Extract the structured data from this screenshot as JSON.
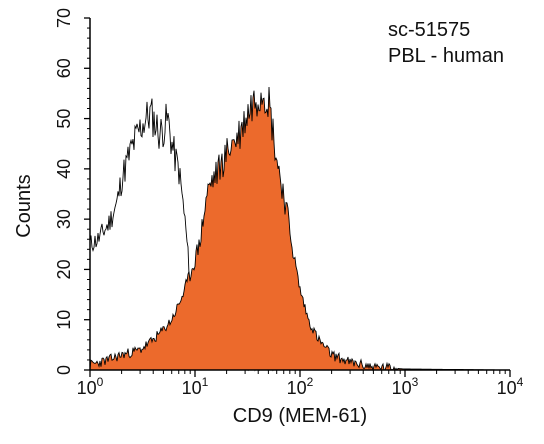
{
  "chart_data": {
    "type": "area",
    "xlabel": "CD9 (MEM-61)",
    "ylabel": "Counts",
    "xscale": "log",
    "xlim": [
      1,
      10000
    ],
    "ylim": [
      0,
      70
    ],
    "x_ticks": [
      {
        "base": "10",
        "exp": "0",
        "value": 1
      },
      {
        "base": "10",
        "exp": "1",
        "value": 10
      },
      {
        "base": "10",
        "exp": "2",
        "value": 100
      },
      {
        "base": "10",
        "exp": "3",
        "value": 1000
      },
      {
        "base": "10",
        "exp": "4",
        "value": 10000
      }
    ],
    "y_ticks": [
      "0",
      "10",
      "20",
      "30",
      "40",
      "50",
      "60",
      "70"
    ],
    "grid": false,
    "legend": "none",
    "annotations": [
      "sc-51575",
      "PBL - human"
    ],
    "series": [
      {
        "style": "outline",
        "color": "#000000",
        "x": [
          1.0,
          1.2,
          1.5,
          1.8,
          2.0,
          2.3,
          2.6,
          3.0,
          3.4,
          3.8,
          4.2,
          4.6,
          5.0,
          5.5,
          6.0,
          6.5,
          7.0,
          7.5,
          8.0,
          8.5,
          9.0,
          9.5,
          10.0,
          11.0,
          12.0,
          13.0,
          14.0,
          16.0,
          18.0,
          20.0,
          25.0,
          30.0,
          40.0,
          60.0,
          100.0
        ],
        "values": [
          25,
          26,
          29,
          33,
          38,
          42,
          45,
          48,
          50,
          51,
          49,
          47,
          48,
          50,
          45,
          42,
          40,
          35,
          30,
          24,
          17,
          11,
          7,
          5,
          4,
          3,
          2.5,
          2,
          1.5,
          1.2,
          1,
          0.7,
          0.5,
          0.3,
          0
        ]
      },
      {
        "style": "filled",
        "color": "#ec6a2c",
        "x": [
          1.0,
          1.5,
          2.0,
          3.0,
          4.0,
          5.0,
          6.0,
          7.0,
          8.0,
          9.0,
          10.0,
          11.0,
          12.0,
          13.0,
          14.0,
          16.0,
          18.0,
          20.0,
          22.0,
          25.0,
          28.0,
          30.0,
          35.0,
          40.0,
          45.0,
          50.0,
          55.0,
          60.0,
          70.0,
          80.0,
          90.0,
          100.0,
          120.0,
          150.0,
          200.0,
          300.0,
          500.0,
          1000.0,
          10000.0
        ],
        "values": [
          1,
          2,
          3,
          4,
          6,
          8,
          10,
          13,
          16,
          19,
          22,
          25,
          30,
          35,
          37,
          39,
          41,
          43,
          45,
          46,
          48,
          50,
          53,
          55,
          56,
          54,
          48,
          42,
          35,
          28,
          21,
          16,
          10,
          6,
          3,
          1.5,
          0.6,
          0.2,
          0
        ]
      },
      {
        "style": "outline",
        "color": "#000000",
        "x": [
          1.0,
          1.5,
          2.0,
          3.0,
          4.0,
          5.0,
          6.0,
          7.0,
          8.0,
          9.0,
          10.0,
          11.0,
          12.0,
          13.0,
          14.0,
          16.0,
          18.0,
          20.0,
          22.0,
          25.0,
          28.0,
          30.0,
          35.0,
          40.0,
          45.0,
          50.0,
          55.0,
          60.0,
          70.0,
          80.0,
          90.0,
          100.0,
          120.0,
          150.0,
          200.0,
          300.0,
          500.0,
          1000.0,
          10000.0
        ],
        "values": [
          1,
          2,
          3,
          4,
          6,
          8,
          10,
          13,
          16,
          19,
          22,
          25,
          30,
          35,
          37,
          39,
          41,
          43,
          45,
          46,
          48,
          50,
          53,
          55,
          56,
          54,
          48,
          42,
          35,
          28,
          21,
          16,
          10,
          6,
          3,
          1.5,
          0.6,
          0.2,
          0
        ]
      }
    ]
  }
}
